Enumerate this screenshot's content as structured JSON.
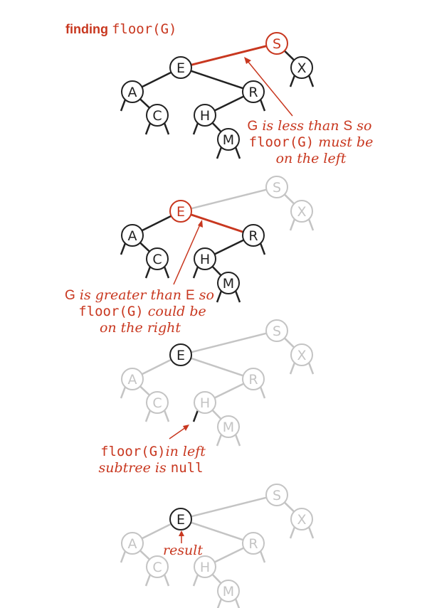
{
  "title": {
    "prefix": "finding",
    "code": "floor(G)"
  },
  "colors": {
    "red": "#c8371f",
    "dark": "#222222",
    "gray": "#c4c4c4"
  },
  "panels": [
    {
      "nodes": [
        {
          "key": "S",
          "state": "red"
        },
        {
          "key": "E",
          "state": "dark"
        },
        {
          "key": "X",
          "state": "dark"
        },
        {
          "key": "A",
          "state": "dark"
        },
        {
          "key": "R",
          "state": "dark"
        },
        {
          "key": "C",
          "state": "dark"
        },
        {
          "key": "H",
          "state": "dark"
        },
        {
          "key": "M",
          "state": "dark"
        }
      ],
      "annotation": {
        "line1a": "G",
        "line1b": " is less than ",
        "line1c": "S",
        "line1d": " so",
        "line2a": "floor(G)",
        "line2b": " must be",
        "line3": "on the left"
      }
    },
    {
      "nodes": [
        {
          "key": "S",
          "state": "gray"
        },
        {
          "key": "E",
          "state": "red"
        },
        {
          "key": "X",
          "state": "gray"
        },
        {
          "key": "A",
          "state": "dark"
        },
        {
          "key": "R",
          "state": "dark"
        },
        {
          "key": "C",
          "state": "dark"
        },
        {
          "key": "H",
          "state": "dark"
        },
        {
          "key": "M",
          "state": "dark"
        }
      ],
      "annotation": {
        "line1a": "G",
        "line1b": " is greater than ",
        "line1c": "E",
        "line1d": " so",
        "line2a": "floor(G)",
        "line2b": " could be",
        "line3": "on the right"
      }
    },
    {
      "nodes": [
        {
          "key": "S",
          "state": "gray"
        },
        {
          "key": "E",
          "state": "dark"
        },
        {
          "key": "X",
          "state": "gray"
        },
        {
          "key": "A",
          "state": "gray"
        },
        {
          "key": "R",
          "state": "gray"
        },
        {
          "key": "C",
          "state": "gray"
        },
        {
          "key": "H",
          "state": "gray"
        },
        {
          "key": "M",
          "state": "gray"
        }
      ],
      "annotation": {
        "line1a": "floor(G)",
        "line1b": "in left",
        "line2a": "subtree is ",
        "line2b": "null"
      }
    },
    {
      "nodes": [
        {
          "key": "S",
          "state": "gray"
        },
        {
          "key": "E",
          "state": "dark"
        },
        {
          "key": "X",
          "state": "gray"
        },
        {
          "key": "A",
          "state": "gray"
        },
        {
          "key": "R",
          "state": "gray"
        },
        {
          "key": "C",
          "state": "gray"
        },
        {
          "key": "H",
          "state": "gray"
        },
        {
          "key": "M",
          "state": "gray"
        }
      ],
      "annotation": {
        "line1": "result"
      }
    }
  ]
}
